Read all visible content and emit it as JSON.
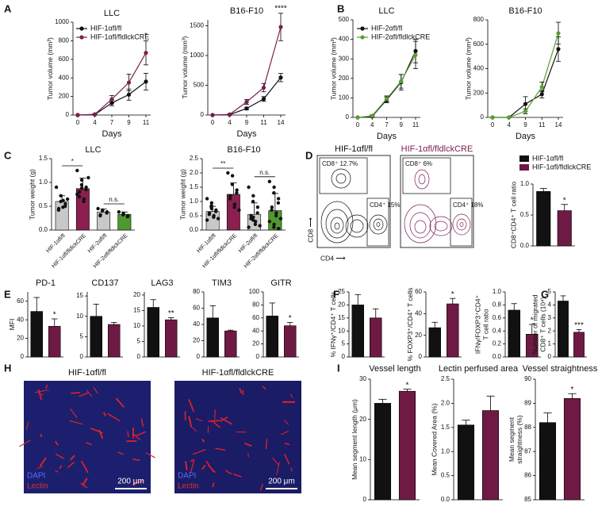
{
  "panel_labels": [
    "A",
    "B",
    "C",
    "D",
    "E",
    "F",
    "G",
    "H",
    "I"
  ],
  "flow": {
    "titles": [
      "HIF-1αfl/fl",
      "HIF-1αfl/fldlckCRE"
    ],
    "gates": [
      [
        "CD8⁺ 12.7%",
        "CD4⁺ 15%"
      ],
      [
        "CD8⁺ 6%",
        "CD4⁺ 18%"
      ]
    ],
    "x_label": "CD4 ⟶",
    "y_label": "CD8 ⟶"
  },
  "images": {
    "titles": [
      "HIF-1αfl/fl",
      "HIF-1αfl/fldlckCRE"
    ],
    "stain_labels": [
      "DAPI",
      "Lectin"
    ],
    "scale_bar": "200 μm"
  },
  "chart_data": [
    {
      "type": "line",
      "title": "LLC",
      "x_label": "Days",
      "y_label": "Tumor volume (mm³)",
      "categories": [
        "0",
        "4",
        "7",
        "9",
        "11"
      ],
      "ylim": [
        0,
        1000
      ],
      "yticks": [
        0,
        200,
        400,
        600,
        800,
        1000
      ],
      "annotations": [
        null,
        null,
        null,
        null,
        "*"
      ],
      "series": [
        {
          "name": "HIF-1αfl/fl",
          "color": "#111111",
          "values": [
            0,
            5,
            130,
            220,
            360
          ],
          "errors": [
            0,
            5,
            30,
            60,
            90
          ]
        },
        {
          "name": "HIF-1αfl/fldlckCRE",
          "color": "#7a1f4f",
          "values": [
            0,
            8,
            170,
            350,
            670
          ],
          "errors": [
            0,
            5,
            40,
            90,
            130
          ]
        }
      ]
    },
    {
      "type": "line",
      "title": "B16-F10",
      "x_label": "Days",
      "y_label": "Tumor volume (mm³)",
      "categories": [
        "0",
        "4",
        "9",
        "11",
        "14"
      ],
      "ylim": [
        0,
        1600
      ],
      "yticks": [
        0,
        500,
        1000,
        1500
      ],
      "annotations": [
        null,
        null,
        null,
        null,
        "****"
      ],
      "series": [
        {
          "name": "HIF-1αfl/fl",
          "color": "#111111",
          "values": [
            0,
            5,
            110,
            270,
            630
          ],
          "errors": [
            0,
            5,
            20,
            40,
            70
          ]
        },
        {
          "name": "HIF-1αfl/fldlckCRE",
          "color": "#7a1f4f",
          "values": [
            0,
            10,
            220,
            460,
            1480
          ],
          "errors": [
            0,
            5,
            40,
            70,
            230
          ]
        }
      ]
    },
    {
      "type": "line",
      "title": "LLC",
      "x_label": "Days",
      "y_label": "Tumor volume (mm³)",
      "categories": [
        "0",
        "4",
        "7",
        "9",
        "11"
      ],
      "ylim": [
        0,
        500
      ],
      "yticks": [
        0,
        100,
        200,
        300,
        400,
        500
      ],
      "series": [
        {
          "name": "HIF-2αfl/fl",
          "color": "#111111",
          "values": [
            0,
            5,
            90,
            180,
            340
          ],
          "errors": [
            0,
            5,
            15,
            40,
            60
          ]
        },
        {
          "name": "HIF-2αfl/fldlckCRE",
          "color": "#5a9e32",
          "values": [
            0,
            8,
            95,
            185,
            320
          ],
          "errors": [
            0,
            5,
            15,
            35,
            70
          ]
        }
      ]
    },
    {
      "type": "line",
      "title": "B16-F10",
      "x_label": "Days",
      "y_label": "Tumor volume (mm³)",
      "categories": [
        "0",
        "4",
        "9",
        "11",
        "14"
      ],
      "ylim": [
        0,
        800
      ],
      "yticks": [
        0,
        200,
        400,
        600,
        800
      ],
      "series": [
        {
          "name": "HIF-2αfl/fl",
          "color": "#111111",
          "values": [
            0,
            0,
            110,
            190,
            560
          ],
          "errors": [
            0,
            0,
            60,
            30,
            100
          ]
        },
        {
          "name": "HIF-2αfl/fldlckCRE",
          "color": "#5a9e32",
          "values": [
            0,
            0,
            50,
            250,
            690
          ],
          "errors": [
            0,
            0,
            20,
            40,
            90
          ]
        }
      ]
    },
    {
      "type": "bar",
      "title": "LLC",
      "y_label": "Tumor weight (g)",
      "categories": [
        "HIF-1αfl/fl",
        "HIF-1αfl/fldlckCRE",
        "HIF-2αfl/fl",
        "HIF-2αfl/fldlckCRE"
      ],
      "values": [
        0.6,
        0.87,
        0.38,
        0.33
      ],
      "errors": [
        0.12,
        0.22,
        0.06,
        0.05
      ],
      "colors": [
        "#c8c8c8",
        "#8a1f50",
        "#c8c8c8",
        "#4f9a2e"
      ],
      "points": [
        [
          0.9,
          0.72,
          0.6,
          0.55,
          0.5,
          0.45,
          0.42,
          0.62,
          0.48,
          0.65
        ],
        [
          1.25,
          1.05,
          0.95,
          0.9,
          0.85,
          0.8,
          0.7,
          0.65,
          0.6,
          1.1,
          0.75,
          0.88
        ],
        [
          0.45,
          0.42,
          0.4,
          0.38,
          0.36,
          0.32,
          0.3
        ],
        [
          0.38,
          0.35,
          0.32,
          0.3,
          0.28
        ]
      ],
      "brackets": [
        "*",
        "n.s."
      ],
      "ylim": [
        0,
        1.5
      ],
      "yticks": [
        {
          "value": 0,
          "label": "0.0"
        },
        {
          "value": 0.5,
          "label": "0.5"
        },
        {
          "value": 1,
          "label": "1.0"
        },
        {
          "value": 1.5,
          "label": "1.5"
        }
      ]
    },
    {
      "type": "bar",
      "title": "B16-F10",
      "y_label": "Tumor weight (g)",
      "categories": [
        "HIF-1αfl/fl",
        "HIF-1αfl/fldlckCRE",
        "HIF-2αfl/fl",
        "HIF-2αfl/fldlckCRE"
      ],
      "values": [
        0.65,
        1.25,
        0.55,
        0.68
      ],
      "errors": [
        0.18,
        0.4,
        0.4,
        0.6
      ],
      "colors": [
        "#c8c8c8",
        "#8a1f50",
        "#c8c8c8",
        "#4f9a2e"
      ],
      "points": [
        [
          1.1,
          0.95,
          0.8,
          0.7,
          0.65,
          0.6,
          0.55,
          0.5,
          0.45,
          0.4,
          0.35,
          0.75,
          0.85
        ],
        [
          2.0,
          1.9,
          1.6,
          1.4,
          1.3,
          1.2,
          1.1,
          0.9,
          0.8,
          0.7
        ],
        [
          1.5,
          1.2,
          1.0,
          0.8,
          0.6,
          0.5,
          0.4,
          0.3,
          0.2,
          0.15,
          0.1,
          0.45,
          0.35
        ],
        [
          1.7,
          1.5,
          1.3,
          1.1,
          0.95,
          0.8,
          0.7,
          0.6,
          0.5,
          0.4,
          0.3,
          0.2,
          0.1,
          0.05
        ]
      ],
      "brackets": [
        "**",
        "n.s."
      ],
      "ylim": [
        0,
        2.5
      ],
      "yticks": [
        {
          "value": 0,
          "label": "0.0"
        },
        {
          "value": 0.5,
          "label": "0.5"
        },
        {
          "value": 1,
          "label": "1.0"
        },
        {
          "value": 1.5,
          "label": "1.5"
        },
        {
          "value": 2,
          "label": "2.0"
        },
        {
          "value": 2.5,
          "label": "2.5"
        }
      ]
    },
    {
      "type": "bar",
      "y_label": "CD8⁺CD4⁺ T cell ratio",
      "series_names": [
        "HIF-1αfl/fl",
        "HIF-1αfl/fldlckCRE"
      ],
      "values": [
        0.88,
        0.57
      ],
      "errors": [
        0.05,
        0.1
      ],
      "colors": [
        "#111111",
        "#6e1a44"
      ],
      "annotations": [
        null,
        "*"
      ],
      "ylim": [
        0,
        1
      ],
      "yticks": [
        {
          "value": 0,
          "label": "0.0"
        },
        {
          "value": 0.5,
          "label": "0.5"
        },
        {
          "value": 1,
          "label": "1.0"
        }
      ]
    },
    {
      "type": "bar",
      "title": "PD-1",
      "y_label": "MFI",
      "values": [
        49,
        33
      ],
      "errors": [
        15,
        8
      ],
      "colors": [
        "#111111",
        "#6e1a44"
      ],
      "annotations": [
        null,
        "*"
      ],
      "ylim": [
        0,
        70
      ],
      "yticks": [
        0,
        20,
        40,
        60
      ]
    },
    {
      "type": "bar",
      "title": "CD137",
      "values": [
        10,
        8
      ],
      "errors": [
        3,
        0.5
      ],
      "colors": [
        "#111111",
        "#6e1a44"
      ],
      "ylim": [
        0,
        16
      ],
      "yticks": [
        0,
        5,
        10,
        15
      ]
    },
    {
      "type": "bar",
      "title": "LAG3",
      "values": [
        16,
        12
      ],
      "errors": [
        2.5,
        0.7
      ],
      "colors": [
        "#111111",
        "#6e1a44"
      ],
      "annotations": [
        null,
        "**"
      ],
      "ylim": [
        0,
        21
      ],
      "yticks": [
        0,
        5,
        10,
        15,
        20
      ]
    },
    {
      "type": "bar",
      "title": "TIM3",
      "values": [
        48,
        32
      ],
      "errors": [
        15,
        1
      ],
      "colors": [
        "#111111",
        "#6e1a44"
      ],
      "ylim": [
        0,
        80
      ],
      "yticks": [
        0,
        20,
        40,
        60,
        80
      ]
    },
    {
      "type": "bar",
      "title": "GITR",
      "values": [
        63,
        48
      ],
      "errors": [
        20,
        5
      ],
      "colors": [
        "#111111",
        "#6e1a44"
      ],
      "annotations": [
        null,
        "*"
      ],
      "ylim": [
        0,
        100
      ],
      "yticks": [
        0,
        20,
        40,
        60,
        80,
        100
      ]
    },
    {
      "type": "bar",
      "y_label": "% IFNγ⁺/CD4⁺ T cells",
      "values": [
        20,
        15
      ],
      "errors": [
        4,
        3.5
      ],
      "colors": [
        "#111111",
        "#6e1a44"
      ],
      "ylim": [
        0,
        25
      ],
      "yticks": [
        0,
        5,
        10,
        15,
        20,
        25
      ]
    },
    {
      "type": "bar",
      "y_label": "% FOXP3⁺/CD4⁺ T cells",
      "values": [
        27,
        49
      ],
      "errors": [
        5,
        5
      ],
      "colors": [
        "#111111",
        "#6e1a44"
      ],
      "annotations": [
        null,
        "*"
      ],
      "ylim": [
        0,
        60
      ],
      "yticks": [
        0,
        20,
        40,
        60
      ]
    },
    {
      "type": "bar",
      "y_label": [
        "IFNγ/FOXP3⁺CD4⁺",
        "T cell ratio"
      ],
      "values": [
        0.72,
        0.35
      ],
      "errors": [
        0.1,
        0.15
      ],
      "colors": [
        "#111111",
        "#6e1a44"
      ],
      "annotations": [
        null,
        "*"
      ],
      "ylim": [
        0,
        1
      ],
      "yticks": [
        {
          "value": 0,
          "label": "0.0"
        },
        {
          "value": 0.2,
          "label": "0.2"
        },
        {
          "value": 0.4,
          "label": "0.4"
        },
        {
          "value": 0.6,
          "label": "0.6"
        },
        {
          "value": 0.8,
          "label": "0.8"
        },
        {
          "value": 1,
          "label": "1.0"
        }
      ]
    },
    {
      "type": "bar",
      "y_label": [
        "Number of migrated",
        "CD8⁺ T cells (10⁴)"
      ],
      "values": [
        4.3,
        1.9
      ],
      "errors": [
        0.4,
        0.2
      ],
      "colors": [
        "#111111",
        "#6e1a44"
      ],
      "annotations": [
        null,
        "***"
      ],
      "ylim": [
        0,
        5
      ],
      "yticks": [
        0,
        1,
        2,
        3,
        4,
        5
      ]
    },
    {
      "type": "bar",
      "title": "Vessel length",
      "y_label": "Mean segment length (μm)",
      "values": [
        24,
        27
      ],
      "errors": [
        1,
        0.5
      ],
      "colors": [
        "#111111",
        "#6e1a44"
      ],
      "annotations": [
        null,
        "*"
      ],
      "ylim": [
        0,
        30
      ],
      "yticks": [
        0,
        10,
        20,
        30
      ]
    },
    {
      "type": "bar",
      "title": "Lectin perfused area",
      "y_label": "Mean Covered Area (%)",
      "values": [
        1.55,
        1.85
      ],
      "errors": [
        0.1,
        0.3
      ],
      "colors": [
        "#111111",
        "#6e1a44"
      ],
      "ylim": [
        0,
        2.5
      ],
      "yticks": [
        {
          "value": 0,
          "label": "0.0"
        },
        {
          "value": 0.5,
          "label": "0.5"
        },
        {
          "value": 1,
          "label": "1.0"
        },
        {
          "value": 1.5,
          "label": "1.5"
        },
        {
          "value": 2,
          "label": "2.0"
        },
        {
          "value": 2.5,
          "label": "2.5"
        }
      ]
    },
    {
      "type": "bar",
      "title": "Vessel straightness",
      "y_label": [
        "Mean segment",
        "straightness (%)"
      ],
      "values": [
        88.2,
        89.2
      ],
      "errors": [
        0.4,
        0.2
      ],
      "colors": [
        "#111111",
        "#6e1a44"
      ],
      "annotations": [
        null,
        "*"
      ],
      "ylim": [
        85,
        90
      ],
      "yticks": [
        85,
        86,
        87,
        88,
        89,
        90
      ]
    }
  ]
}
